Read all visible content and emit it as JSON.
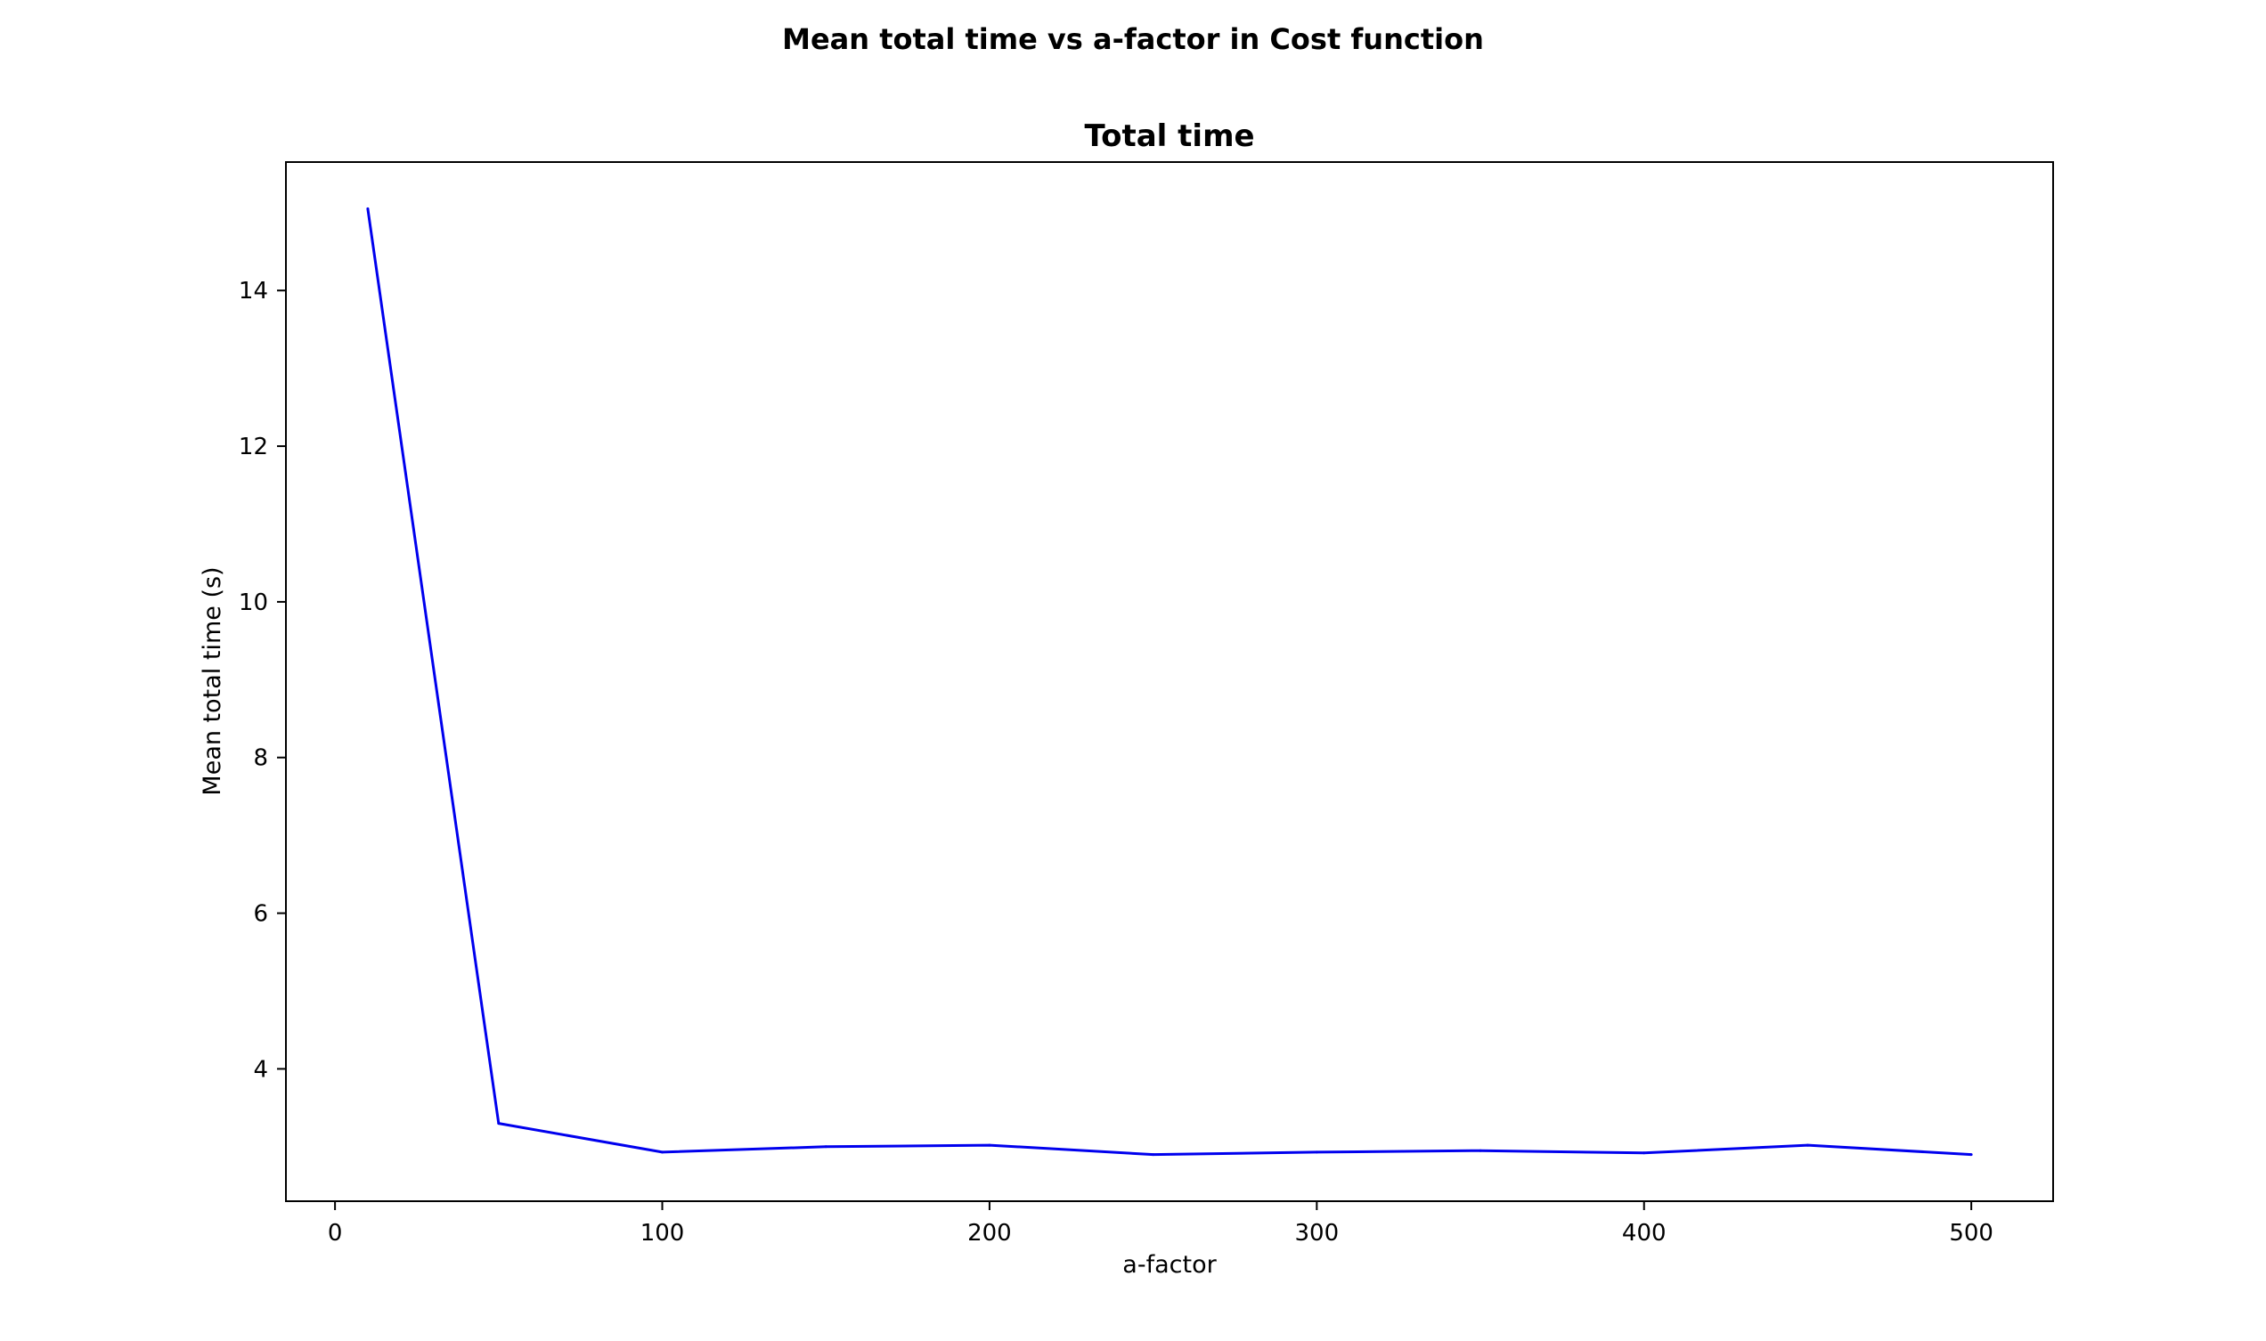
{
  "figure": {
    "suptitle": "Mean total time vs a-factor in Cost function"
  },
  "chart_data": {
    "type": "line",
    "title": "Total time",
    "xlabel": "a-factor",
    "ylabel": "Mean total time (s)",
    "xlim": [
      -15,
      525
    ],
    "ylim": [
      2.3,
      15.65
    ],
    "xticks": [
      0,
      100,
      200,
      300,
      400,
      500
    ],
    "yticks": [
      4,
      6,
      8,
      10,
      12,
      14
    ],
    "grid": false,
    "line_color": "#0000ee",
    "series": [
      {
        "x": [
          10,
          50,
          100,
          150,
          200,
          250,
          300,
          350,
          400,
          450,
          500
        ],
        "y": [
          15.05,
          3.3,
          2.93,
          3.0,
          3.02,
          2.9,
          2.93,
          2.95,
          2.92,
          3.02,
          2.9
        ]
      }
    ]
  }
}
